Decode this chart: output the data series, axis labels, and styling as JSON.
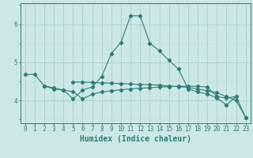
{
  "xlabel": "Humidex (Indice chaleur)",
  "bg_color": "#cce8e6",
  "grid_major_color": "#aaccca",
  "grid_minor_color": "#c0dedd",
  "line_color": "#2d7d78",
  "x_values": [
    0,
    1,
    2,
    3,
    4,
    5,
    6,
    7,
    8,
    9,
    10,
    11,
    12,
    13,
    14,
    15,
    16,
    17,
    18,
    19,
    20,
    21,
    22,
    23
  ],
  "line1": [
    4.68,
    4.68,
    4.38,
    4.3,
    4.27,
    4.04,
    4.27,
    4.35,
    4.63,
    5.23,
    5.52,
    6.22,
    6.22,
    5.5,
    5.3,
    5.05,
    4.82,
    4.3,
    4.22,
    4.17,
    4.06,
    3.88,
    4.1,
    null
  ],
  "line2": [
    null,
    null,
    4.38,
    4.33,
    4.27,
    4.23,
    4.04,
    4.16,
    4.22,
    4.25,
    4.28,
    4.3,
    4.32,
    4.33,
    4.35,
    4.36,
    4.37,
    4.37,
    4.37,
    4.35,
    4.1,
    4.06,
    4.1,
    3.55
  ],
  "line3": [
    null,
    null,
    null,
    null,
    null,
    4.48,
    4.48,
    4.47,
    4.46,
    4.45,
    4.44,
    4.43,
    4.42,
    4.41,
    4.4,
    4.38,
    4.36,
    4.34,
    4.3,
    4.25,
    4.2,
    4.1,
    4.0,
    3.55
  ],
  "ylim": [
    3.4,
    6.55
  ],
  "xlim": [
    -0.5,
    23.5
  ],
  "yticks": [
    4,
    5,
    6
  ],
  "xticks": [
    0,
    1,
    2,
    3,
    4,
    5,
    6,
    7,
    8,
    9,
    10,
    11,
    12,
    13,
    14,
    15,
    16,
    17,
    18,
    19,
    20,
    21,
    22,
    23
  ],
  "tick_fontsize": 5.5,
  "label_fontsize": 7.0
}
